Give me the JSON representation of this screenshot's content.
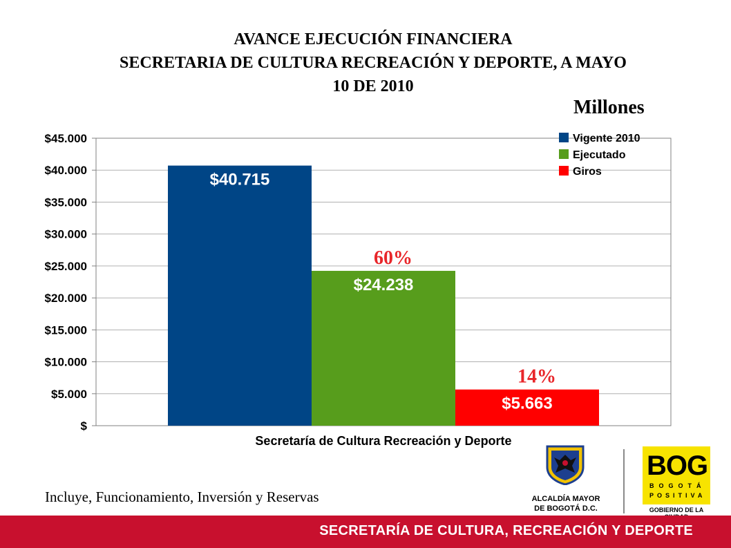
{
  "title_lines": [
    "AVANCE EJECUCIÓN FINANCIERA",
    "SECRETARIA DE CULTURA RECREACIÓN Y DEPORTE,  A MAYO",
    "10 DE 2010"
  ],
  "unit_label": "Millones",
  "footnote": "Incluye, Funcionamiento, Inversión y Reservas",
  "footer_text": "SECRETARÍA DE CULTURA, RECREACIÓN Y DEPORTE",
  "logos": {
    "alcaldia_line1": "ALCALDÍA MAYOR",
    "alcaldia_line2": "DE BOGOTÁ D.C.",
    "bog_word": "BOG",
    "bog_line1": "BOGOTÁ",
    "bog_line2": "POSITIVA",
    "bog_gov": "GOBIERNO DE LA CIUDAD"
  },
  "chart_data": {
    "type": "bar",
    "categories": [
      "Secretaría de Cultura Recreación y Deporte"
    ],
    "xlabel": "",
    "ylabel": "",
    "ylim": [
      0,
      45000
    ],
    "yticks": [
      0,
      5000,
      10000,
      15000,
      20000,
      25000,
      30000,
      35000,
      40000,
      45000
    ],
    "ytick_labels": [
      "$",
      "$5.000",
      "$10.000",
      "$15.000",
      "$20.000",
      "$25.000",
      "$30.000",
      "$35.000",
      "$40.000",
      "$45.000"
    ],
    "grid": true,
    "legend_position": "top-right",
    "series": [
      {
        "name": "Vigente 2010",
        "values": [
          40715
        ],
        "label": "$40.715",
        "color": "#004586"
      },
      {
        "name": "Ejecutado",
        "values": [
          24238
        ],
        "label": "$24.238",
        "color": "#579d1c",
        "annotation": "60%"
      },
      {
        "name": "Giros",
        "values": [
          5663
        ],
        "label": "$5.663",
        "color": "#ff0000",
        "annotation": "14%"
      }
    ],
    "annotation_color": "#e8262a"
  }
}
